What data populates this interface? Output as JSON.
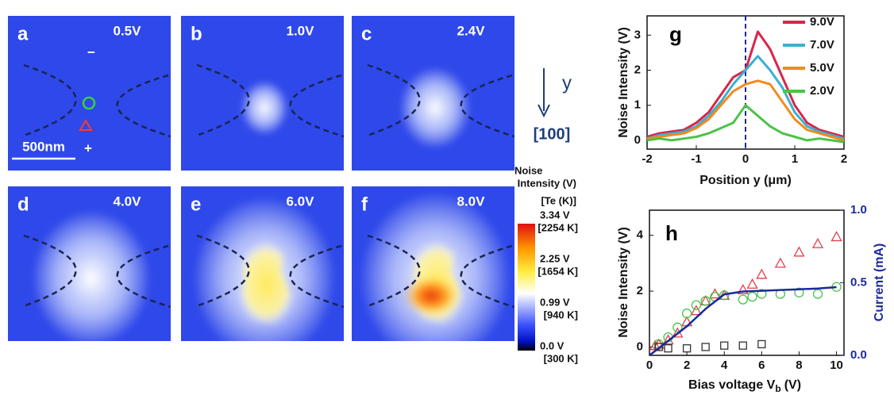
{
  "panels": [
    {
      "letter": "a",
      "voltage": "0.5V"
    },
    {
      "letter": "b",
      "voltage": "1.0V"
    },
    {
      "letter": "c",
      "voltage": "2.4V"
    },
    {
      "letter": "d",
      "voltage": "4.0V"
    },
    {
      "letter": "e",
      "voltage": "6.0V"
    },
    {
      "letter": "f",
      "voltage": "8.0V"
    }
  ],
  "scale_bar": "500nm",
  "polarity": [
    "−",
    "+"
  ],
  "direction": {
    "axis": "y",
    "index": "[100]"
  },
  "colorbar": {
    "title": [
      "Noise",
      "Intensity (V)"
    ],
    "subtitle": "[Te (K)]",
    "labels": [
      {
        "volt": "3.34 V",
        "temp": "[2254 K]"
      },
      {
        "volt": "2.25 V",
        "temp": "[1654 K]"
      },
      {
        "volt": "0.99 V",
        "temp": "[940 K]"
      },
      {
        "volt": "0.0 V",
        "temp": "[300 K]"
      }
    ]
  },
  "chart_data": [
    {
      "type": "line",
      "label": "g",
      "xlabel": "Position y (μm)",
      "ylabel": "Noise Intensity (V)",
      "x": [
        -2,
        -1.75,
        -1.5,
        -1.25,
        -1,
        -0.75,
        -0.5,
        -0.25,
        0,
        0.25,
        0.5,
        0.75,
        1,
        1.25,
        1.5,
        1.75,
        2
      ],
      "series": [
        {
          "name": "9.0V",
          "color": "#d8264a",
          "values": [
            0.1,
            0.2,
            0.25,
            0.3,
            0.5,
            0.8,
            1.3,
            1.8,
            2.0,
            3.1,
            2.6,
            1.8,
            1.0,
            0.5,
            0.3,
            0.2,
            0.1
          ]
        },
        {
          "name": "7.0V",
          "color": "#3bb0d0",
          "values": [
            0.05,
            0.15,
            0.2,
            0.25,
            0.4,
            0.7,
            1.1,
            1.6,
            2.0,
            2.4,
            2.0,
            1.5,
            0.8,
            0.4,
            0.25,
            0.15,
            0.05
          ]
        },
        {
          "name": "5.0V",
          "color": "#f28a1e",
          "values": [
            0.05,
            0.1,
            0.15,
            0.2,
            0.35,
            0.6,
            1.0,
            1.4,
            1.6,
            1.7,
            1.6,
            1.1,
            0.6,
            0.3,
            0.2,
            0.1,
            0.0
          ]
        },
        {
          "name": "2.0V",
          "color": "#4cc24a",
          "values": [
            0.0,
            0.05,
            0.0,
            0.05,
            0.1,
            0.2,
            0.35,
            0.5,
            1.0,
            0.7,
            0.4,
            0.2,
            0.1,
            0.0,
            0.05,
            0.0,
            -0.05
          ]
        }
      ],
      "xlim": [
        -2,
        2
      ],
      "ylim": [
        -0.25,
        3.55
      ],
      "xticks": [
        -2,
        -1,
        0,
        1,
        2
      ],
      "yticks": [
        0,
        1,
        2,
        3
      ],
      "vline": 0
    },
    {
      "type": "scatter",
      "label": "h",
      "xlabel": {
        "main": "Bias voltage V",
        "sub": "b",
        "unit": "(V)"
      },
      "ylabel": "Noise Intensity (V)",
      "y2label": "Current (mA)",
      "series": [
        {
          "marker": "triangle",
          "color": "#e0404a",
          "x": [
            0.3,
            0.5,
            1,
            1.5,
            2,
            2.5,
            3,
            3.5,
            4,
            5,
            5.5,
            6,
            7,
            8,
            9,
            10
          ],
          "values": [
            0.05,
            0.1,
            0.25,
            0.5,
            0.9,
            1.3,
            1.65,
            1.9,
            1.85,
            2.05,
            2.25,
            2.6,
            3.0,
            3.4,
            3.7,
            3.95
          ]
        },
        {
          "marker": "circle",
          "color": "#4cc24a",
          "x": [
            0.5,
            1,
            1.5,
            2,
            2.5,
            3,
            3.5,
            4,
            5,
            5.5,
            6,
            7,
            8,
            9,
            10
          ],
          "values": [
            0.1,
            0.35,
            0.7,
            1.2,
            1.5,
            1.65,
            1.8,
            1.85,
            1.7,
            1.8,
            1.9,
            1.9,
            1.95,
            1.9,
            2.15
          ]
        },
        {
          "marker": "square",
          "color": "#333333",
          "x": [
            0.5,
            1,
            2,
            3,
            4,
            5,
            6
          ],
          "values": [
            0.0,
            -0.05,
            -0.05,
            0.0,
            0.05,
            0.05,
            0.1
          ]
        },
        {
          "marker": "line",
          "color": "#1a2a9a",
          "axis": "y2",
          "x": [
            0,
            1,
            2,
            3,
            4,
            5,
            6,
            7,
            8,
            9,
            10
          ],
          "values": [
            0,
            0.1,
            0.2,
            0.32,
            0.42,
            0.44,
            0.445,
            0.45,
            0.455,
            0.46,
            0.47
          ]
        }
      ],
      "xlim": [
        0,
        10.4
      ],
      "ylim": [
        -0.3,
        4.9
      ],
      "y2lim": [
        0,
        1.0
      ],
      "xticks": [
        0,
        2,
        4,
        6,
        8,
        10
      ],
      "yticks": [
        0,
        2,
        4
      ],
      "y2ticks": [
        {
          "value": 0,
          "label": "0.0"
        },
        {
          "value": 0.5,
          "label": "0.5"
        },
        {
          "value": 1,
          "label": "1.0"
        }
      ]
    }
  ]
}
